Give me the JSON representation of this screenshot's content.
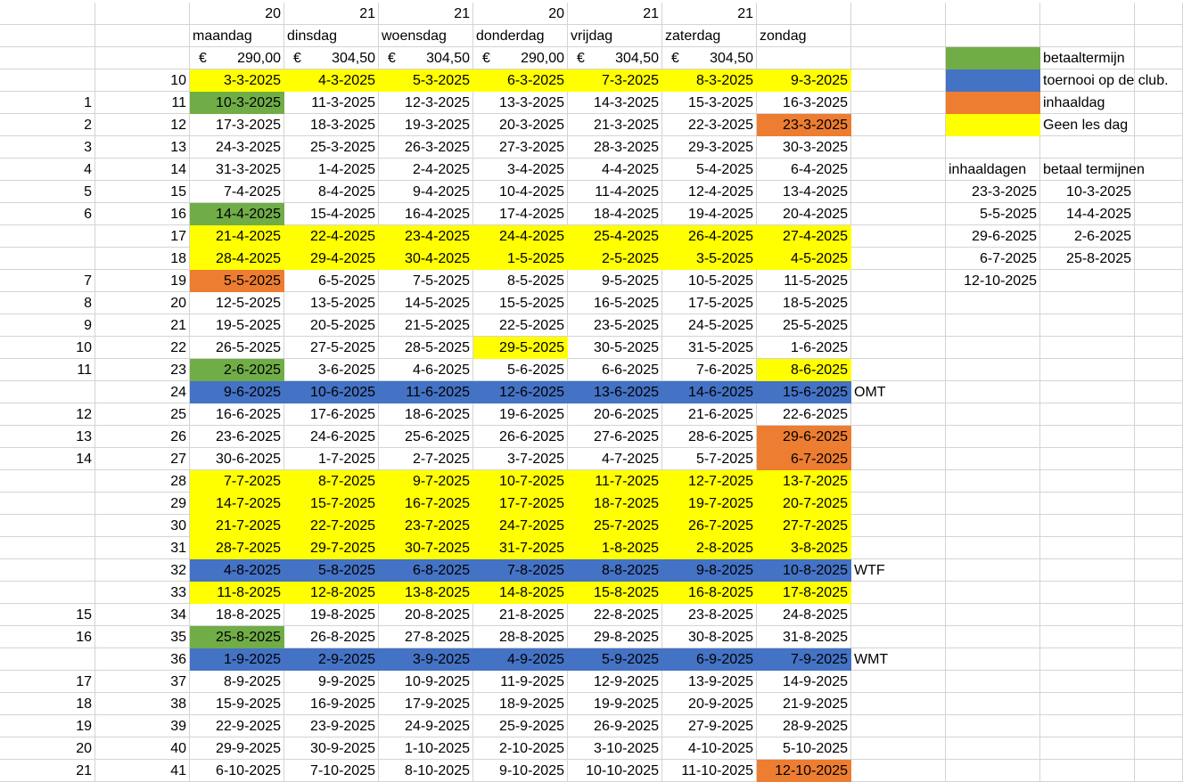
{
  "sheet": {
    "day_counts": [
      "20",
      "21",
      "21",
      "20",
      "21",
      "21"
    ],
    "day_names": [
      "maandag",
      "dinsdag",
      "woensdag",
      "donderdag",
      "vrijdag",
      "zaterdag",
      "zondag"
    ],
    "currency_symbol": "€",
    "prices": [
      "290,00",
      "304,50",
      "304,50",
      "290,00",
      "304,50",
      "304,50"
    ],
    "colors": {
      "green": "#70ad47",
      "blue": "#4472c4",
      "orange": "#ed7d31",
      "yellow": "#ffff00"
    },
    "rows": [
      {
        "a": "",
        "w": "10",
        "d": [
          "3-3-2025",
          "4-3-2025",
          "5-3-2025",
          "6-3-2025",
          "7-3-2025",
          "8-3-2025",
          "9-3-2025"
        ],
        "f": [
          "y",
          "y",
          "y",
          "y",
          "y",
          "y",
          "y"
        ],
        "note": ""
      },
      {
        "a": "1",
        "w": "11",
        "d": [
          "10-3-2025",
          "11-3-2025",
          "12-3-2025",
          "13-3-2025",
          "14-3-2025",
          "15-3-2025",
          "16-3-2025"
        ],
        "f": [
          "g",
          "",
          "",
          "",
          "",
          "",
          ""
        ],
        "note": ""
      },
      {
        "a": "2",
        "w": "12",
        "d": [
          "17-3-2025",
          "18-3-2025",
          "19-3-2025",
          "20-3-2025",
          "21-3-2025",
          "22-3-2025",
          "23-3-2025"
        ],
        "f": [
          "",
          "",
          "",
          "",
          "",
          "",
          "o"
        ],
        "note": ""
      },
      {
        "a": "3",
        "w": "13",
        "d": [
          "24-3-2025",
          "25-3-2025",
          "26-3-2025",
          "27-3-2025",
          "28-3-2025",
          "29-3-2025",
          "30-3-2025"
        ],
        "f": [
          "",
          "",
          "",
          "",
          "",
          "",
          ""
        ],
        "note": ""
      },
      {
        "a": "4",
        "w": "14",
        "d": [
          "31-3-2025",
          "1-4-2025",
          "2-4-2025",
          "3-4-2025",
          "4-4-2025",
          "5-4-2025",
          "6-4-2025"
        ],
        "f": [
          "",
          "",
          "",
          "",
          "",
          "",
          ""
        ],
        "note": ""
      },
      {
        "a": "5",
        "w": "15",
        "d": [
          "7-4-2025",
          "8-4-2025",
          "9-4-2025",
          "10-4-2025",
          "11-4-2025",
          "12-4-2025",
          "13-4-2025"
        ],
        "f": [
          "",
          "",
          "",
          "",
          "",
          "",
          ""
        ],
        "note": ""
      },
      {
        "a": "6",
        "w": "16",
        "d": [
          "14-4-2025",
          "15-4-2025",
          "16-4-2025",
          "17-4-2025",
          "18-4-2025",
          "19-4-2025",
          "20-4-2025"
        ],
        "f": [
          "g",
          "",
          "",
          "",
          "",
          "",
          ""
        ],
        "note": ""
      },
      {
        "a": "",
        "w": "17",
        "d": [
          "21-4-2025",
          "22-4-2025",
          "23-4-2025",
          "24-4-2025",
          "25-4-2025",
          "26-4-2025",
          "27-4-2025"
        ],
        "f": [
          "y",
          "y",
          "y",
          "y",
          "y",
          "y",
          "y"
        ],
        "note": ""
      },
      {
        "a": "",
        "w": "18",
        "d": [
          "28-4-2025",
          "29-4-2025",
          "30-4-2025",
          "1-5-2025",
          "2-5-2025",
          "3-5-2025",
          "4-5-2025"
        ],
        "f": [
          "y",
          "y",
          "y",
          "y",
          "y",
          "y",
          "y"
        ],
        "note": ""
      },
      {
        "a": "7",
        "w": "19",
        "d": [
          "5-5-2025",
          "6-5-2025",
          "7-5-2025",
          "8-5-2025",
          "9-5-2025",
          "10-5-2025",
          "11-5-2025"
        ],
        "f": [
          "o",
          "",
          "",
          "",
          "",
          "",
          ""
        ],
        "note": ""
      },
      {
        "a": "8",
        "w": "20",
        "d": [
          "12-5-2025",
          "13-5-2025",
          "14-5-2025",
          "15-5-2025",
          "16-5-2025",
          "17-5-2025",
          "18-5-2025"
        ],
        "f": [
          "",
          "",
          "",
          "",
          "",
          "",
          ""
        ],
        "note": ""
      },
      {
        "a": "9",
        "w": "21",
        "d": [
          "19-5-2025",
          "20-5-2025",
          "21-5-2025",
          "22-5-2025",
          "23-5-2025",
          "24-5-2025",
          "25-5-2025"
        ],
        "f": [
          "",
          "",
          "",
          "",
          "",
          "",
          ""
        ],
        "note": ""
      },
      {
        "a": "10",
        "w": "22",
        "d": [
          "26-5-2025",
          "27-5-2025",
          "28-5-2025",
          "29-5-2025",
          "30-5-2025",
          "31-5-2025",
          "1-6-2025"
        ],
        "f": [
          "",
          "",
          "",
          "y",
          "",
          "",
          ""
        ],
        "note": ""
      },
      {
        "a": "11",
        "w": "23",
        "d": [
          "2-6-2025",
          "3-6-2025",
          "4-6-2025",
          "5-6-2025",
          "6-6-2025",
          "7-6-2025",
          "8-6-2025"
        ],
        "f": [
          "g",
          "",
          "",
          "",
          "",
          "",
          "y"
        ],
        "note": ""
      },
      {
        "a": "",
        "w": "24",
        "d": [
          "9-6-2025",
          "10-6-2025",
          "11-6-2025",
          "12-6-2025",
          "13-6-2025",
          "14-6-2025",
          "15-6-2025"
        ],
        "f": [
          "b",
          "b",
          "b",
          "b",
          "b",
          "b",
          "b"
        ],
        "note": "OMT"
      },
      {
        "a": "12",
        "w": "25",
        "d": [
          "16-6-2025",
          "17-6-2025",
          "18-6-2025",
          "19-6-2025",
          "20-6-2025",
          "21-6-2025",
          "22-6-2025"
        ],
        "f": [
          "",
          "",
          "",
          "",
          "",
          "",
          ""
        ],
        "note": ""
      },
      {
        "a": "13",
        "w": "26",
        "d": [
          "23-6-2025",
          "24-6-2025",
          "25-6-2025",
          "26-6-2025",
          "27-6-2025",
          "28-6-2025",
          "29-6-2025"
        ],
        "f": [
          "",
          "",
          "",
          "",
          "",
          "",
          "o"
        ],
        "note": ""
      },
      {
        "a": "14",
        "w": "27",
        "d": [
          "30-6-2025",
          "1-7-2025",
          "2-7-2025",
          "3-7-2025",
          "4-7-2025",
          "5-7-2025",
          "6-7-2025"
        ],
        "f": [
          "",
          "",
          "",
          "",
          "",
          "",
          "o"
        ],
        "note": ""
      },
      {
        "a": "",
        "w": "28",
        "d": [
          "7-7-2025",
          "8-7-2025",
          "9-7-2025",
          "10-7-2025",
          "11-7-2025",
          "12-7-2025",
          "13-7-2025"
        ],
        "f": [
          "y",
          "y",
          "y",
          "y",
          "y",
          "y",
          "y"
        ],
        "note": ""
      },
      {
        "a": "",
        "w": "29",
        "d": [
          "14-7-2025",
          "15-7-2025",
          "16-7-2025",
          "17-7-2025",
          "18-7-2025",
          "19-7-2025",
          "20-7-2025"
        ],
        "f": [
          "y",
          "y",
          "y",
          "y",
          "y",
          "y",
          "y"
        ],
        "note": ""
      },
      {
        "a": "",
        "w": "30",
        "d": [
          "21-7-2025",
          "22-7-2025",
          "23-7-2025",
          "24-7-2025",
          "25-7-2025",
          "26-7-2025",
          "27-7-2025"
        ],
        "f": [
          "y",
          "y",
          "y",
          "y",
          "y",
          "y",
          "y"
        ],
        "note": ""
      },
      {
        "a": "",
        "w": "31",
        "d": [
          "28-7-2025",
          "29-7-2025",
          "30-7-2025",
          "31-7-2025",
          "1-8-2025",
          "2-8-2025",
          "3-8-2025"
        ],
        "f": [
          "y",
          "y",
          "y",
          "y",
          "y",
          "y",
          "y"
        ],
        "note": ""
      },
      {
        "a": "",
        "w": "32",
        "d": [
          "4-8-2025",
          "5-8-2025",
          "6-8-2025",
          "7-8-2025",
          "8-8-2025",
          "9-8-2025",
          "10-8-2025"
        ],
        "f": [
          "b",
          "b",
          "b",
          "b",
          "b",
          "b",
          "b"
        ],
        "note": "WTF"
      },
      {
        "a": "",
        "w": "33",
        "d": [
          "11-8-2025",
          "12-8-2025",
          "13-8-2025",
          "14-8-2025",
          "15-8-2025",
          "16-8-2025",
          "17-8-2025"
        ],
        "f": [
          "y",
          "y",
          "y",
          "y",
          "y",
          "y",
          "y"
        ],
        "note": ""
      },
      {
        "a": "15",
        "w": "34",
        "d": [
          "18-8-2025",
          "19-8-2025",
          "20-8-2025",
          "21-8-2025",
          "22-8-2025",
          "23-8-2025",
          "24-8-2025"
        ],
        "f": [
          "",
          "",
          "",
          "",
          "",
          "",
          ""
        ],
        "note": ""
      },
      {
        "a": "16",
        "w": "35",
        "d": [
          "25-8-2025",
          "26-8-2025",
          "27-8-2025",
          "28-8-2025",
          "29-8-2025",
          "30-8-2025",
          "31-8-2025"
        ],
        "f": [
          "g",
          "",
          "",
          "",
          "",
          "",
          ""
        ],
        "note": ""
      },
      {
        "a": "",
        "w": "36",
        "d": [
          "1-9-2025",
          "2-9-2025",
          "3-9-2025",
          "4-9-2025",
          "5-9-2025",
          "6-9-2025",
          "7-9-2025"
        ],
        "f": [
          "b",
          "b",
          "b",
          "b",
          "b",
          "b",
          "b"
        ],
        "note": "WMT"
      },
      {
        "a": "17",
        "w": "37",
        "d": [
          "8-9-2025",
          "9-9-2025",
          "10-9-2025",
          "11-9-2025",
          "12-9-2025",
          "13-9-2025",
          "14-9-2025"
        ],
        "f": [
          "",
          "",
          "",
          "",
          "",
          "",
          ""
        ],
        "note": ""
      },
      {
        "a": "18",
        "w": "38",
        "d": [
          "15-9-2025",
          "16-9-2025",
          "17-9-2025",
          "18-9-2025",
          "19-9-2025",
          "20-9-2025",
          "21-9-2025"
        ],
        "f": [
          "",
          "",
          "",
          "",
          "",
          "",
          ""
        ],
        "note": ""
      },
      {
        "a": "19",
        "w": "39",
        "d": [
          "22-9-2025",
          "23-9-2025",
          "24-9-2025",
          "25-9-2025",
          "26-9-2025",
          "27-9-2025",
          "28-9-2025"
        ],
        "f": [
          "",
          "",
          "",
          "",
          "",
          "",
          ""
        ],
        "note": ""
      },
      {
        "a": "20",
        "w": "40",
        "d": [
          "29-9-2025",
          "30-9-2025",
          "1-10-2025",
          "2-10-2025",
          "3-10-2025",
          "4-10-2025",
          "5-10-2025"
        ],
        "f": [
          "",
          "",
          "",
          "",
          "",
          "",
          ""
        ],
        "note": ""
      },
      {
        "a": "21",
        "w": "41",
        "d": [
          "6-10-2025",
          "7-10-2025",
          "8-10-2025",
          "9-10-2025",
          "10-10-2025",
          "11-10-2025",
          "12-10-2025"
        ],
        "f": [
          "",
          "",
          "",
          "",
          "",
          "",
          "o"
        ],
        "note": ""
      }
    ]
  },
  "legend": [
    {
      "color": "g",
      "label": "betaaltermijn"
    },
    {
      "color": "b",
      "label": "toernooi op de club."
    },
    {
      "color": "o",
      "label": "inhaaldag"
    },
    {
      "color": "y",
      "label": "Geen les dag"
    }
  ],
  "side_table": {
    "header_inhaaldagen": "inhaaldagen",
    "header_betaal": "betaal termijnen",
    "inhaaldagen": [
      "23-3-2025",
      "5-5-2025",
      "29-6-2025",
      "6-7-2025",
      "12-10-2025"
    ],
    "betaal_termijnen": [
      "10-3-2025",
      "14-4-2025",
      "2-6-2025",
      "25-8-2025"
    ]
  }
}
